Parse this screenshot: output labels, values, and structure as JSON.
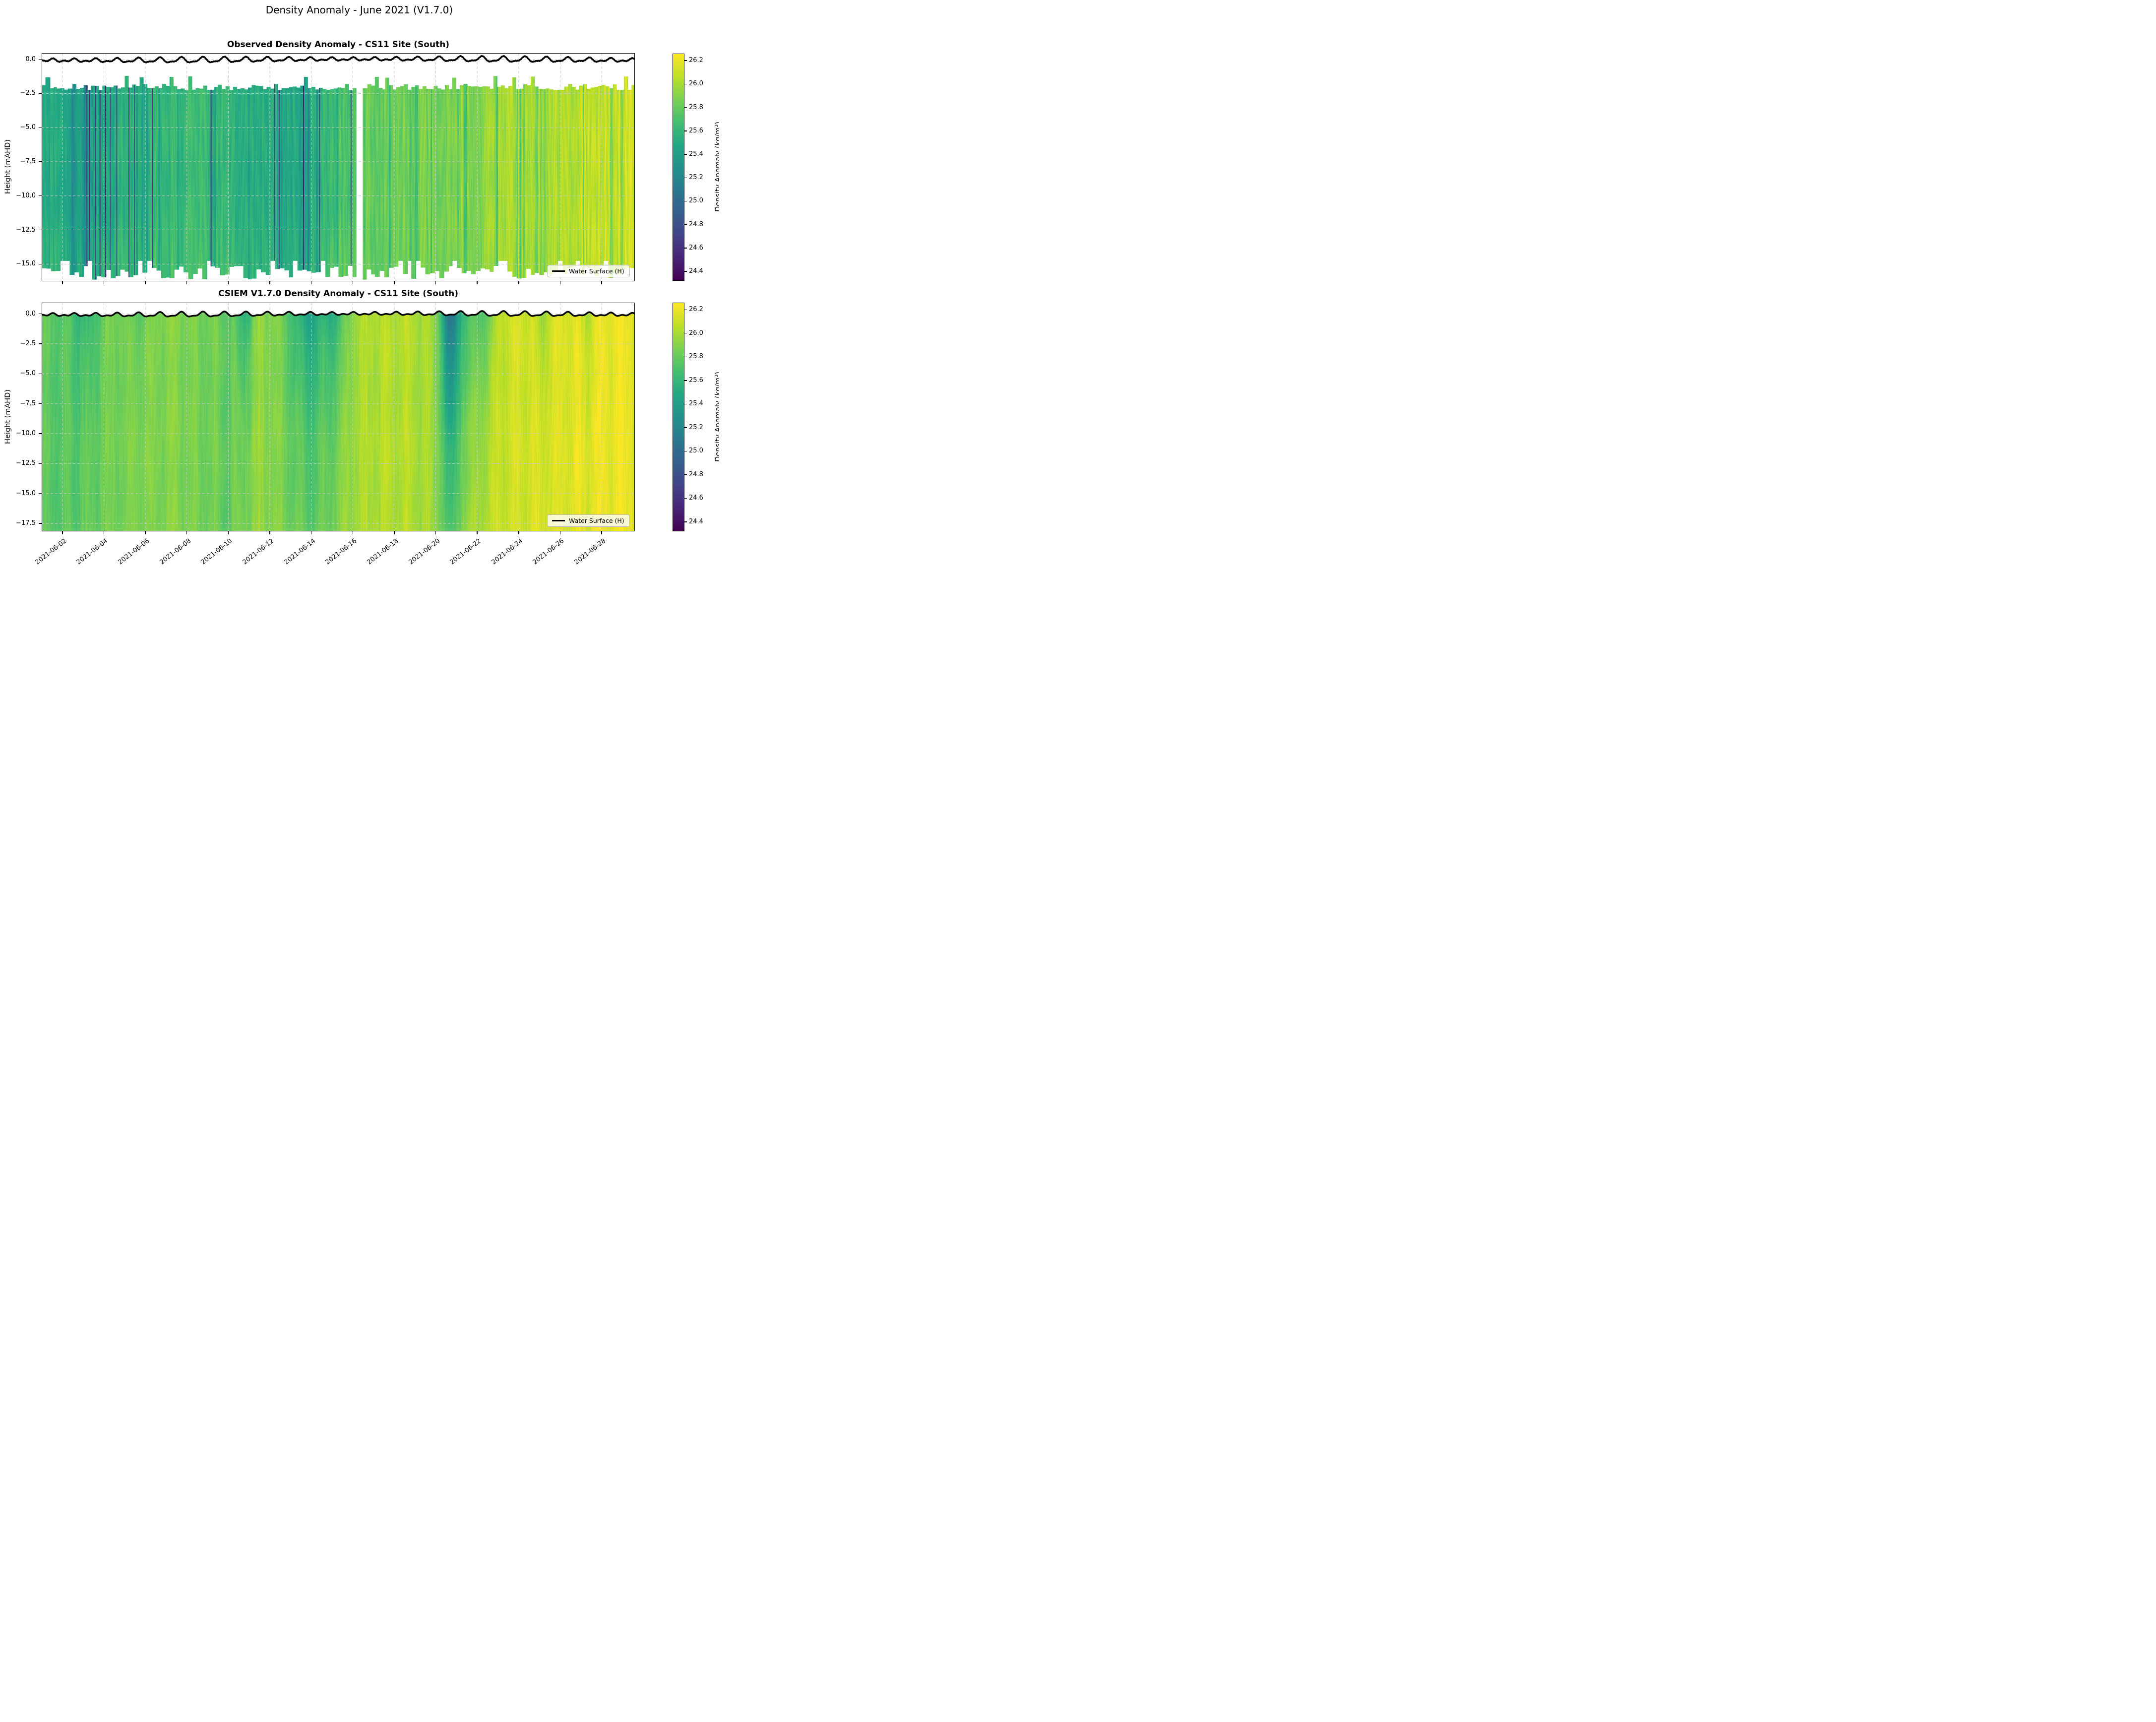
{
  "figure": {
    "title": "Density Anomaly - June 2021 (V1.7.0)"
  },
  "subplots": [
    {
      "id": "observed",
      "title": "Observed Density Anomaly - CS11 Site (South)",
      "ylabel": "Height (mAHD)",
      "ytick_values": [
        0,
        -2.5,
        -5,
        -7.5,
        -10,
        -12.5,
        -15
      ],
      "ytick_labels": [
        "0.0",
        "−2.5",
        "−5.0",
        "−7.5",
        "−10.0",
        "−12.5",
        "−15.0"
      ],
      "legend_label": "Water Surface (H)"
    },
    {
      "id": "model",
      "title": "CSIEM V1.7.0 Density Anomaly - CS11 Site (South)",
      "ylabel": "Height (mAHD)",
      "ytick_values": [
        0,
        -2.5,
        -5,
        -7.5,
        -10,
        -12.5,
        -15,
        -17.5
      ],
      "ytick_labels": [
        "0.0",
        "−2.5",
        "−5.0",
        "−7.5",
        "−10.0",
        "−12.5",
        "−15.0",
        "−17.5"
      ],
      "legend_label": "Water Surface (H)"
    }
  ],
  "x_axis": {
    "tick_days": [
      1,
      3,
      5,
      7,
      9,
      11,
      13,
      15,
      17,
      19,
      21,
      23,
      25,
      27
    ],
    "tick_labels": [
      "2021-06-02",
      "2021-06-04",
      "2021-06-06",
      "2021-06-08",
      "2021-06-10",
      "2021-06-12",
      "2021-06-14",
      "2021-06-16",
      "2021-06-18",
      "2021-06-20",
      "2021-06-22",
      "2021-06-24",
      "2021-06-26",
      "2021-06-28"
    ]
  },
  "colorbar": {
    "label": "Density Anomaly (kg/m³)",
    "tick_values": [
      26.2,
      26.0,
      25.8,
      25.6,
      25.4,
      25.2,
      25.0,
      24.8,
      24.6,
      24.4
    ],
    "tick_labels": [
      "26.2",
      "26.0",
      "25.8",
      "25.6",
      "25.4",
      "25.2",
      "25.0",
      "24.8",
      "24.6",
      "24.4"
    ],
    "vmin": 24.32,
    "vmax": 26.26,
    "colormap": "viridis"
  },
  "colors": {
    "water_line": "#000000",
    "grid": "#c9c9c9",
    "frame": "#000000",
    "legend_bg": "rgba(255,255,255,0.8)",
    "legend_border": "#b9b9b9",
    "viridis_stops": [
      "#440154",
      "#482475",
      "#414487",
      "#355f8d",
      "#2a788e",
      "#21918c",
      "#22a884",
      "#44bf70",
      "#7ad151",
      "#bddf26",
      "#fde725"
    ]
  },
  "chart_data": [
    {
      "type": "heatmap",
      "name": "observed",
      "title": "Observed Density Anomaly - CS11 Site (South)",
      "x_epoch": "2021-06-01",
      "x_span_days": 28.6,
      "x_tick_dates": [
        "2021-06-02",
        "2021-06-04",
        "2021-06-06",
        "2021-06-08",
        "2021-06-10",
        "2021-06-12",
        "2021-06-14",
        "2021-06-16",
        "2021-06-18",
        "2021-06-20",
        "2021-06-22",
        "2021-06-24",
        "2021-06-26",
        "2021-06-28"
      ],
      "ylim": [
        -16.26,
        0.46
      ],
      "value_range": [
        24.32,
        26.26
      ],
      "surface_top_band_mAHD": [
        -2.25,
        -1.15
      ],
      "bed_band_mAHD": [
        -16.3,
        -14.7
      ],
      "data_gap_days": [
        15.15,
        15.45
      ],
      "daily_mean_density": [
        25.56,
        25.52,
        25.48,
        25.52,
        25.56,
        25.56,
        25.6,
        25.62,
        25.64,
        25.6,
        25.56,
        25.54,
        25.5,
        25.56,
        25.64,
        25.76,
        25.8,
        25.82,
        25.85,
        25.86,
        25.9,
        25.92,
        25.96,
        26.0,
        26.02,
        26.04,
        26.06,
        26.08,
        26.1,
        26.1
      ],
      "dark_streak_days": [
        2.3,
        2.55,
        3.05,
        3.3,
        3.6,
        4.2,
        4.45,
        8.15,
        11.2,
        11.45,
        12.6,
        13.35,
        14.9
      ],
      "medium_streak_days": [
        18.75,
        22.9,
        26.1
      ],
      "teal_band_events": [
        {
          "day": 12.65,
          "strength": 0.16,
          "width_days": 0.25
        },
        {
          "day": 2.0,
          "strength": 0.08,
          "width_days": 0.8
        },
        {
          "day": 10.1,
          "strength": 0.06,
          "width_days": 0.5
        }
      ],
      "water_level": {
        "mean": -0.03,
        "diurnal_amp": 0.13,
        "semidiurnal_amp": 0.07,
        "spring_neap_amp": 0.05,
        "period_days": 1.035
      }
    },
    {
      "type": "heatmap",
      "name": "model",
      "title": "CSIEM V1.7.0 Density Anomaly - CS11 Site (South)",
      "x_epoch": "2021-06-01",
      "x_span_days": 28.6,
      "ylim": [
        -18.16,
        0.94
      ],
      "value_range": [
        24.32,
        26.26
      ],
      "daily_mean_density": [
        25.78,
        25.74,
        25.8,
        25.84,
        25.86,
        25.88,
        25.9,
        25.88,
        25.84,
        25.8,
        25.92,
        25.94,
        25.86,
        25.8,
        25.9,
        26.0,
        26.02,
        26.04,
        26.04,
        25.96,
        25.98,
        26.06,
        26.1,
        26.12,
        26.14,
        26.16,
        26.18,
        26.2,
        26.2,
        26.2
      ],
      "plume_events": [
        {
          "day": 2.1,
          "strength": 0.22,
          "width_days": 0.45,
          "depth_reach_m": 7
        },
        {
          "day": 4.6,
          "strength": 0.12,
          "width_days": 0.3,
          "depth_reach_m": 5
        },
        {
          "day": 9.75,
          "strength": 0.3,
          "width_days": 0.3,
          "depth_reach_m": 6
        },
        {
          "day": 12.9,
          "strength": 0.38,
          "width_days": 0.7,
          "depth_reach_m": 9
        },
        {
          "day": 14.2,
          "strength": 0.25,
          "width_days": 0.4,
          "depth_reach_m": 8
        },
        {
          "day": 19.65,
          "strength": 0.85,
          "width_days": 0.28,
          "depth_reach_m": 16
        },
        {
          "day": 20.4,
          "strength": 0.35,
          "width_days": 0.5,
          "depth_reach_m": 12
        },
        {
          "day": 21.4,
          "strength": 0.25,
          "width_days": 0.35,
          "depth_reach_m": 8
        },
        {
          "day": 24.1,
          "strength": 0.18,
          "width_days": 0.25,
          "depth_reach_m": 6
        },
        {
          "day": 26.3,
          "strength": 0.12,
          "width_days": 0.3,
          "depth_reach_m": 5
        }
      ],
      "water_level": {
        "mean": -0.03,
        "diurnal_amp": 0.13,
        "semidiurnal_amp": 0.07,
        "spring_neap_amp": 0.05,
        "period_days": 1.035
      }
    }
  ]
}
